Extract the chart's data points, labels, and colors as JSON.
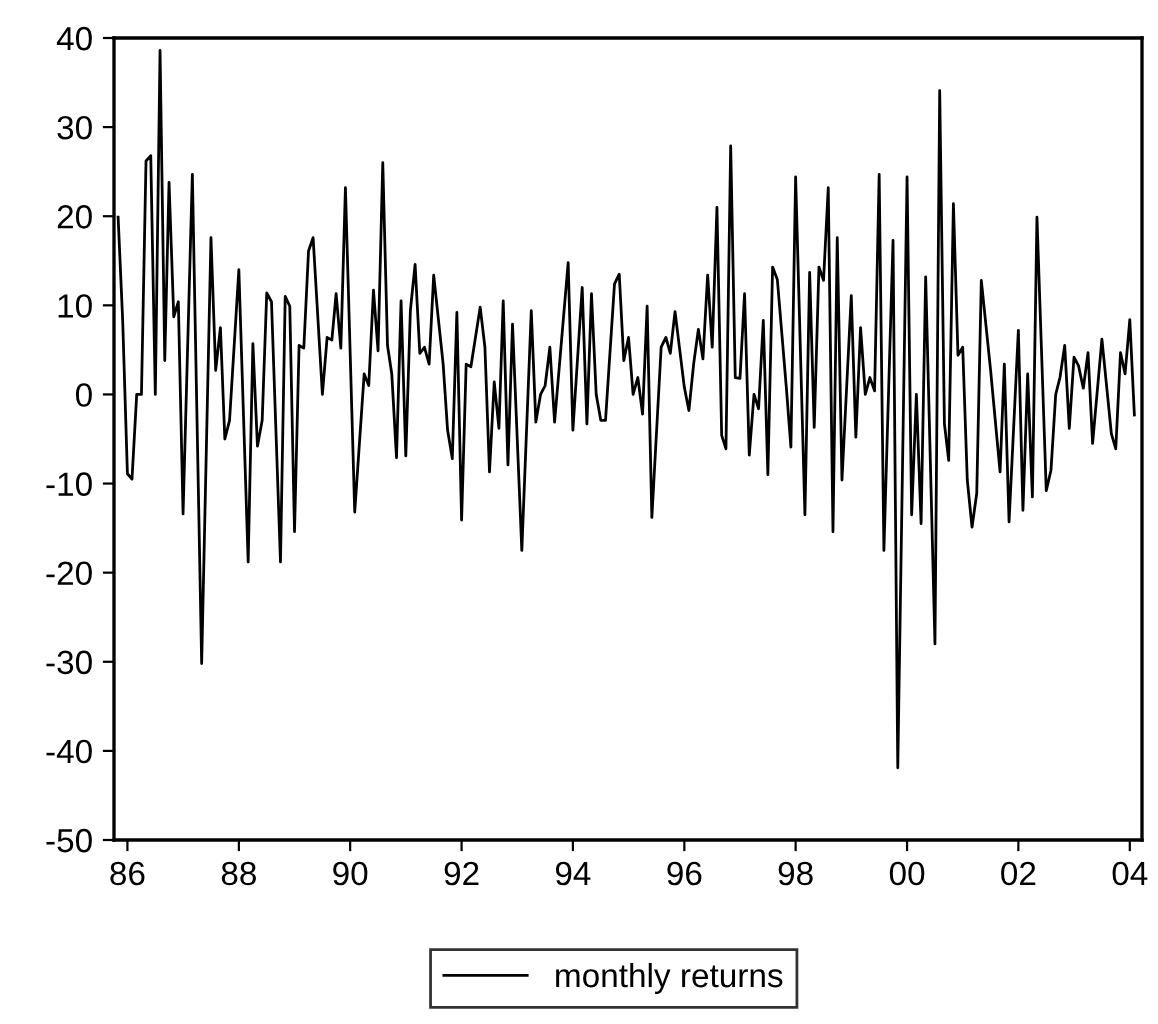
{
  "chart_data": {
    "type": "line",
    "x": [
      "1986-04",
      "1986-05",
      "1986-06",
      "1986-07",
      "1986-08",
      "1986-09",
      "1986-10",
      "1986-11",
      "1986-12",
      "1987-01",
      "1987-02",
      "1987-03",
      "1987-04",
      "1987-05",
      "1987-06",
      "1987-08",
      "1987-10",
      "1987-12",
      "1988-01",
      "1988-02",
      "1988-03",
      "1988-04",
      "1988-06",
      "1988-08",
      "1988-09",
      "1988-10",
      "1988-11",
      "1988-12",
      "1989-01",
      "1989-03",
      "1989-04",
      "1989-05",
      "1989-06",
      "1989-07",
      "1989-08",
      "1989-09",
      "1989-10",
      "1989-12",
      "1990-01",
      "1990-02",
      "1990-03",
      "1990-04",
      "1990-05",
      "1990-07",
      "1990-09",
      "1990-10",
      "1990-11",
      "1990-12",
      "1991-01",
      "1991-02",
      "1991-03",
      "1991-04",
      "1991-05",
      "1991-06",
      "1991-07",
      "1991-08",
      "1991-09",
      "1991-10",
      "1991-11",
      "1991-12",
      "1992-02",
      "1992-03",
      "1992-04",
      "1992-05",
      "1992-06",
      "1992-07",
      "1992-08",
      "1992-10",
      "1992-11",
      "1992-12",
      "1993-01",
      "1993-02",
      "1993-03",
      "1993-04",
      "1993-05",
      "1993-07",
      "1993-09",
      "1993-10",
      "1993-11",
      "1993-12",
      "1994-01",
      "1994-02",
      "1994-05",
      "1994-06",
      "1994-08",
      "1994-09",
      "1994-10",
      "1994-11",
      "1994-12",
      "1995-01",
      "1995-03",
      "1995-04",
      "1995-05",
      "1995-06",
      "1995-07",
      "1995-08",
      "1995-09",
      "1995-10",
      "1995-11",
      "1996-01",
      "1996-02",
      "1996-03",
      "1996-04",
      "1996-06",
      "1996-07",
      "1996-08",
      "1996-09",
      "1996-10",
      "1996-11",
      "1996-12",
      "1997-01",
      "1997-02",
      "1997-03",
      "1997-04",
      "1997-05",
      "1997-06",
      "1997-07",
      "1997-08",
      "1997-09",
      "1997-10",
      "1997-11",
      "1997-12",
      "1998-01",
      "1998-02",
      "1998-04",
      "1998-05",
      "1998-06",
      "1998-08",
      "1998-09",
      "1998-10",
      "1998-11",
      "1998-12",
      "1999-01",
      "1999-02",
      "1999-03",
      "1999-04",
      "1999-06",
      "1999-07",
      "1999-08",
      "1999-09",
      "1999-10",
      "1999-11",
      "1999-12",
      "2000-01",
      "2000-03",
      "2000-04",
      "2000-06",
      "2000-07",
      "2000-08",
      "2000-09",
      "2000-10",
      "2000-12",
      "2001-01",
      "2001-02",
      "2001-03",
      "2001-04",
      "2001-05",
      "2001-06",
      "2001-07",
      "2001-08",
      "2001-09",
      "2001-10",
      "2001-12",
      "2002-02",
      "2002-03",
      "2002-04",
      "2002-06",
      "2002-07",
      "2002-08",
      "2002-09",
      "2002-10",
      "2002-12",
      "2003-01",
      "2003-02",
      "2003-03",
      "2003-04",
      "2003-05",
      "2003-06",
      "2003-07",
      "2003-08",
      "2003-09",
      "2003-10",
      "2003-12",
      "2004-02",
      "2004-03",
      "2004-04",
      "2004-05",
      "2004-06",
      "2004-07"
    ],
    "series": [
      {
        "name": "monthly returns",
        "color": "#000000",
        "values": [
          19.9,
          8.3,
          -8.9,
          -9.5,
          0,
          0,
          26.2,
          26.8,
          0,
          38.6,
          3.8,
          23.8,
          8.7,
          10.4,
          -13.4,
          24.7,
          -30.2,
          17.6,
          2.7,
          7.5,
          -5,
          -2.9,
          14,
          -18.8,
          5.7,
          -5.8,
          -2.9,
          11.4,
          10.4,
          -18.8,
          11,
          9.9,
          -15.4,
          5.5,
          5.2,
          16.1,
          17.6,
          0,
          6.4,
          6.1,
          11.3,
          5.2,
          23.2,
          -13.2,
          2.3,
          1,
          11.7,
          4.9,
          26,
          5.5,
          2.3,
          -7.1,
          10.5,
          -6.9,
          9.4,
          14.6,
          4.6,
          5.3,
          3.4,
          13.4,
          3.4,
          -4,
          -7.2,
          9.2,
          -14.1,
          3.4,
          3.1,
          9.8,
          5.3,
          -8.7,
          1.4,
          -3.8,
          10.5,
          -7.9,
          7.9,
          -17.5,
          9.4,
          -3.1,
          0,
          1,
          5.3,
          -3.1,
          14.8,
          -4,
          12,
          -3.3,
          11.3,
          0,
          -2.9,
          -2.9,
          12.4,
          13.5,
          3.8,
          6.4,
          0,
          1.9,
          -2.2,
          9.9,
          -13.8,
          5.3,
          6.4,
          4.6,
          9.3,
          0.8,
          -1.8,
          3.4,
          7.3,
          4,
          13.4,
          5.3,
          21,
          -4.6,
          -6.1,
          27.9,
          1.9,
          1.8,
          11.3,
          -6.8,
          0,
          -1.6,
          8.3,
          -9,
          14.3,
          12.9,
          0.8,
          -5.9,
          24.4,
          -13.5,
          13.7,
          -3.7,
          14.3,
          12.8,
          23.2,
          -15.4,
          17.6,
          -9.6,
          11.1,
          -4.8,
          7.5,
          0,
          1.9,
          0.4,
          24.7,
          -17.5,
          17.3,
          -41.9,
          24.4,
          -13.5,
          0,
          -14.5,
          13.2,
          -28,
          34.1,
          -3.3,
          -7.4,
          21.4,
          4.4,
          5.3,
          -9.6,
          -14.9,
          -11.1,
          12.8,
          2.7,
          -8.7,
          3.4,
          -14.3,
          7.2,
          -13,
          2.3,
          -11.5,
          19.9,
          -10.8,
          -8.5,
          0,
          1.9,
          5.5,
          -3.8,
          4.2,
          3.2,
          0.7,
          4.7,
          -5.5,
          6.2,
          -4.4,
          -6.1,
          4.7,
          2.3,
          8.4,
          -2.3
        ]
      }
    ],
    "xlim": [
      "1986-03-05",
      "2004-08-20"
    ],
    "xticks": [
      {
        "value": "1986-06-01",
        "label": "86"
      },
      {
        "value": "1988-06-01",
        "label": "88"
      },
      {
        "value": "1990-06-01",
        "label": "90"
      },
      {
        "value": "1992-06-01",
        "label": "92"
      },
      {
        "value": "1994-06-01",
        "label": "94"
      },
      {
        "value": "1996-06-01",
        "label": "96"
      },
      {
        "value": "1998-06-01",
        "label": "98"
      },
      {
        "value": "2000-06-01",
        "label": "00"
      },
      {
        "value": "2002-06-01",
        "label": "02"
      },
      {
        "value": "2004-06-01",
        "label": "04"
      }
    ],
    "ylim": [
      -50,
      40
    ],
    "yticks": [
      -50,
      -40,
      -30,
      -20,
      -10,
      0,
      10,
      20,
      30,
      40
    ],
    "grid": false,
    "legend": "bottom",
    "marker": "none",
    "line_style": "solid"
  }
}
